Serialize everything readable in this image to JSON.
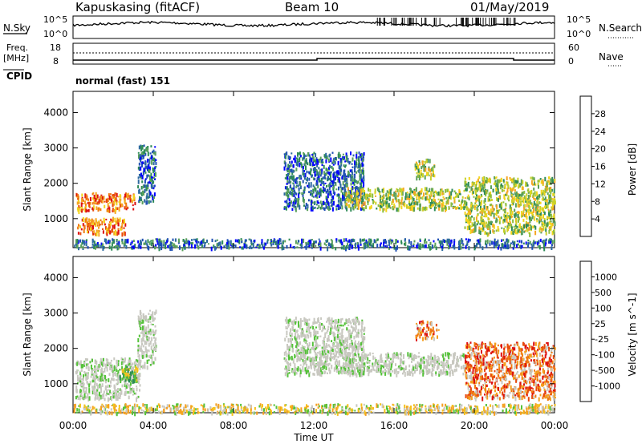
{
  "header": {
    "station": "Kapuskasing (fitACF)",
    "beam": "Beam 10",
    "date": "01/May/2019"
  },
  "params": {
    "nsky_label": "N.Sky",
    "nsearch_label": "N.Search",
    "noise_ticks_left": [
      "10^5",
      "10^0"
    ],
    "noise_ticks_right": [
      "10^5",
      "10^0"
    ],
    "freq_label": "Freq.",
    "freq_unit": "[MHz]",
    "freq_ticks": [
      "18",
      "8"
    ],
    "nave_label": "Nave",
    "nave_ticks": [
      "60",
      "0"
    ],
    "cpid_label": "CPID",
    "cpid_value": "normal (fast) 151"
  },
  "chart_data": [
    {
      "type": "heatmap",
      "title": "",
      "ylabel": "Slant Range [km]",
      "ylim": [
        180,
        4600
      ],
      "yticks": [
        1000,
        2000,
        3000,
        4000
      ],
      "xlim": [
        0,
        24
      ],
      "xticks": [
        "00:00",
        "04:00",
        "08:00",
        "12:00",
        "16:00",
        "20:00",
        "00:00"
      ],
      "colorbar": {
        "label": "Power [dB]",
        "ticks": [
          "28",
          "24",
          "20",
          "16",
          "12",
          "8",
          "4"
        ],
        "colors": [
          "#0000ff",
          "#1f4fb4",
          "#2d6aa0",
          "#2e8b57",
          "#5aa05a",
          "#8dbd3c",
          "#c8d22a",
          "#f2d51c",
          "#f5a623",
          "#f07a10",
          "#e84a0c",
          "#dd1111"
        ]
      },
      "echo_regions": [
        {
          "t0": 0.1,
          "t1": 3.1,
          "r0": 1250,
          "r1": 1750,
          "level": "high"
        },
        {
          "t0": 0.2,
          "t1": 2.6,
          "r0": 600,
          "r1": 1050,
          "level": "high"
        },
        {
          "t0": 3.2,
          "t1": 4.1,
          "r0": 1500,
          "r1": 3100,
          "level": "low"
        },
        {
          "t0": 10.5,
          "t1": 14.5,
          "r0": 1300,
          "r1": 2900,
          "level": "low"
        },
        {
          "t0": 13.5,
          "t1": 19.5,
          "r0": 1300,
          "r1": 1900,
          "level": "mid"
        },
        {
          "t0": 17.0,
          "t1": 18.0,
          "r0": 2200,
          "r1": 2700,
          "level": "mid"
        },
        {
          "t0": 19.5,
          "t1": 24.0,
          "r0": 600,
          "r1": 2200,
          "level": "mid"
        },
        {
          "t0": 0.0,
          "t1": 24.0,
          "r0": 200,
          "r1": 450,
          "level": "low"
        }
      ]
    },
    {
      "type": "heatmap",
      "title": "",
      "ylabel": "Slant Range [km]",
      "ylim": [
        180,
        4600
      ],
      "yticks": [
        1000,
        2000,
        3000,
        4000
      ],
      "xlim": [
        0,
        24
      ],
      "xticks": [
        "00:00",
        "04:00",
        "08:00",
        "12:00",
        "16:00",
        "20:00",
        "00:00"
      ],
      "xlabel": "Time UT",
      "colorbar": {
        "label": "Velocity [m s^-1]",
        "ticks": [
          "1000",
          "500",
          "100",
          "25",
          "-25",
          "-100",
          "-500",
          "-1000"
        ],
        "colors": [
          "#1f3fbf",
          "#2a6fa8",
          "#2e8b57",
          "#55c23a",
          "#c8c8c0",
          "#f5c21c",
          "#f5a020",
          "#f07a10",
          "#e84a0c",
          "#dd1111"
        ]
      },
      "echo_regions": [
        {
          "t0": 0.1,
          "t1": 3.3,
          "r0": 600,
          "r1": 1750,
          "level": "ground"
        },
        {
          "t0": 2.3,
          "t1": 3.2,
          "r0": 1100,
          "r1": 1500,
          "level": "positive"
        },
        {
          "t0": 3.2,
          "t1": 4.1,
          "r0": 1500,
          "r1": 3100,
          "level": "ground"
        },
        {
          "t0": 10.5,
          "t1": 14.5,
          "r0": 1300,
          "r1": 2900,
          "level": "ground"
        },
        {
          "t0": 13.5,
          "t1": 19.5,
          "r0": 1300,
          "r1": 1900,
          "level": "ground"
        },
        {
          "t0": 17.0,
          "t1": 18.2,
          "r0": 2300,
          "r1": 2800,
          "level": "negative"
        },
        {
          "t0": 19.5,
          "t1": 24.0,
          "r0": 600,
          "r1": 2200,
          "level": "negative"
        },
        {
          "t0": 0.0,
          "t1": 24.0,
          "r0": 200,
          "r1": 450,
          "level": "slow-negative"
        }
      ]
    }
  ]
}
